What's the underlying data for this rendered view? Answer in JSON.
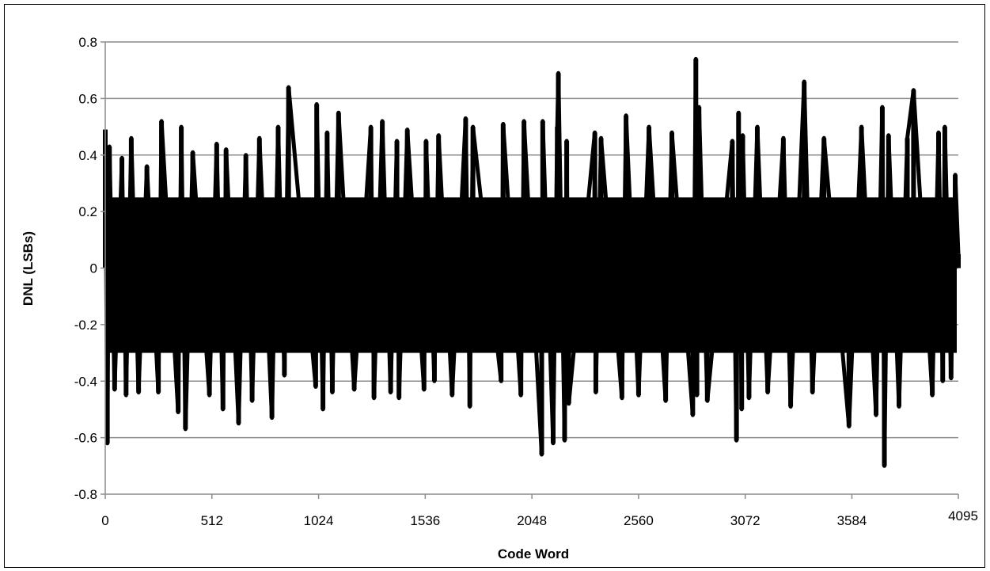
{
  "chart_data": {
    "type": "line",
    "title": "",
    "xlabel": "Code Word",
    "ylabel": "DNL (LSBs)",
    "xlim": [
      0,
      4095
    ],
    "ylim": [
      -0.8,
      0.8
    ],
    "x_ticks": [
      0,
      512,
      1024,
      1536,
      2048,
      2560,
      3072,
      3584,
      4095
    ],
    "x_tick_labels": [
      "0",
      "512",
      "1024",
      "1536",
      "2048",
      "2560",
      "3072",
      "3584",
      "4095"
    ],
    "y_ticks": [
      0.8,
      0.6,
      0.4,
      0.2,
      0,
      -0.2,
      -0.4,
      -0.6,
      -0.8
    ],
    "y_tick_labels": [
      "0.8",
      "0.6",
      "0.4",
      "0.2",
      "0",
      "-0.2",
      "-0.4",
      "-0.6",
      "-0.8"
    ],
    "grid": "horizontal",
    "legend": "none",
    "series_color": "#000000",
    "series": [
      {
        "x": [
          0,
          10,
          20,
          45,
          80,
          100,
          125,
          160,
          200,
          255,
          270,
          350,
          365,
          385,
          420,
          500,
          535,
          565,
          580,
          640,
          675,
          705,
          740,
          800,
          830,
          860,
          880,
          1010,
          1015,
          1045,
          1065,
          1090,
          1120,
          1195,
          1275,
          1290,
          1330,
          1370,
          1400,
          1410,
          1450,
          1530,
          1540,
          1580,
          1600,
          1665,
          1730,
          1750,
          1765,
          1900,
          1910,
          1995,
          2010,
          2095,
          2100,
          2150,
          2170,
          2175,
          2205,
          2215,
          2225,
          2350,
          2355,
          2380,
          2480,
          2500,
          2560,
          2610,
          2690,
          2720,
          2820,
          2835,
          2840,
          2850,
          2890,
          3010,
          3030,
          3040,
          3055,
          3060,
          3090,
          3130,
          3180,
          3255,
          3290,
          3355,
          3395,
          3450,
          3570,
          3630,
          3700,
          3730,
          3740,
          3760,
          3810,
          3850,
          3880,
          3970,
          4000,
          4020,
          4030,
          4060,
          4080,
          4095
        ],
        "y": [
          0.49,
          -0.62,
          0.43,
          -0.43,
          0.39,
          -0.45,
          0.46,
          -0.44,
          0.36,
          -0.44,
          0.52,
          -0.51,
          0.5,
          -0.57,
          0.41,
          -0.45,
          0.44,
          -0.5,
          0.42,
          -0.55,
          0.4,
          -0.47,
          0.46,
          -0.53,
          0.5,
          -0.38,
          0.64,
          -0.42,
          0.58,
          -0.5,
          0.48,
          -0.44,
          0.55,
          -0.43,
          0.5,
          -0.46,
          0.52,
          -0.44,
          0.45,
          -0.46,
          0.49,
          -0.43,
          0.45,
          -0.4,
          0.47,
          -0.45,
          0.53,
          -0.49,
          0.5,
          -0.4,
          0.51,
          -0.45,
          0.52,
          -0.66,
          0.52,
          -0.62,
          0.5,
          0.69,
          -0.61,
          0.45,
          -0.48,
          0.48,
          -0.44,
          0.46,
          -0.46,
          0.54,
          -0.45,
          0.5,
          -0.47,
          0.48,
          -0.52,
          0.74,
          -0.45,
          0.57,
          -0.47,
          0.45,
          -0.61,
          0.55,
          -0.5,
          0.47,
          -0.46,
          0.5,
          -0.44,
          0.46,
          -0.49,
          0.66,
          -0.44,
          0.46,
          -0.56,
          0.5,
          -0.52,
          0.57,
          -0.7,
          0.47,
          -0.49,
          0.46,
          0.63,
          -0.45,
          0.48,
          -0.4,
          0.5,
          -0.39,
          0.33,
          0.05
        ]
      }
    ]
  }
}
